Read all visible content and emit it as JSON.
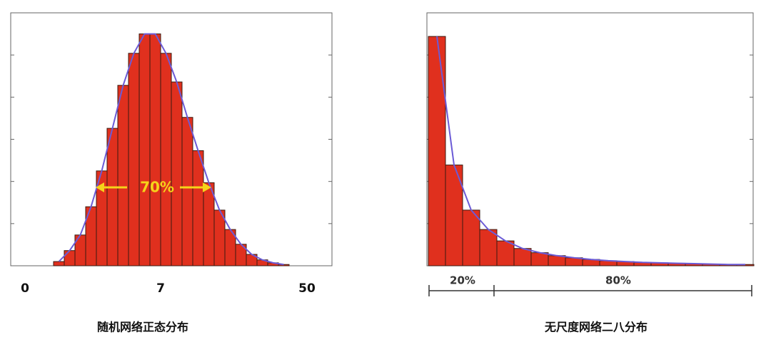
{
  "chart_data": [
    {
      "type": "bar",
      "title": "随机网络正态分布",
      "values": [
        0.1,
        0.36,
        0.73,
        1.4,
        2.25,
        3.26,
        4.28,
        5.04,
        5.5,
        5.5,
        5.04,
        4.36,
        3.52,
        2.73,
        1.97,
        1.32,
        0.86,
        0.51,
        0.27,
        0.14,
        0.07,
        0.03
      ],
      "xtick_labels": [
        "0",
        "7",
        "50"
      ],
      "annotation": "70%",
      "color": "#e0301e",
      "curve_color": "#6b5bd6",
      "annotation_color": "#f5d31a",
      "ylim": [
        0,
        6
      ],
      "yticks": [
        1,
        2,
        3,
        4,
        5
      ]
    },
    {
      "type": "bar",
      "title": "无尺度网络二八分布",
      "values": [
        5.44,
        2.39,
        1.32,
        0.86,
        0.59,
        0.41,
        0.31,
        0.24,
        0.19,
        0.15,
        0.12,
        0.1,
        0.08,
        0.07,
        0.06,
        0.05,
        0.04,
        0.03,
        0.03
      ],
      "annotations": [
        "20%",
        "80%"
      ],
      "color": "#e0301e",
      "curve_color": "#6b5bd6",
      "ylim": [
        0,
        6
      ],
      "yticks": [
        1,
        2,
        3,
        4,
        5
      ]
    }
  ]
}
